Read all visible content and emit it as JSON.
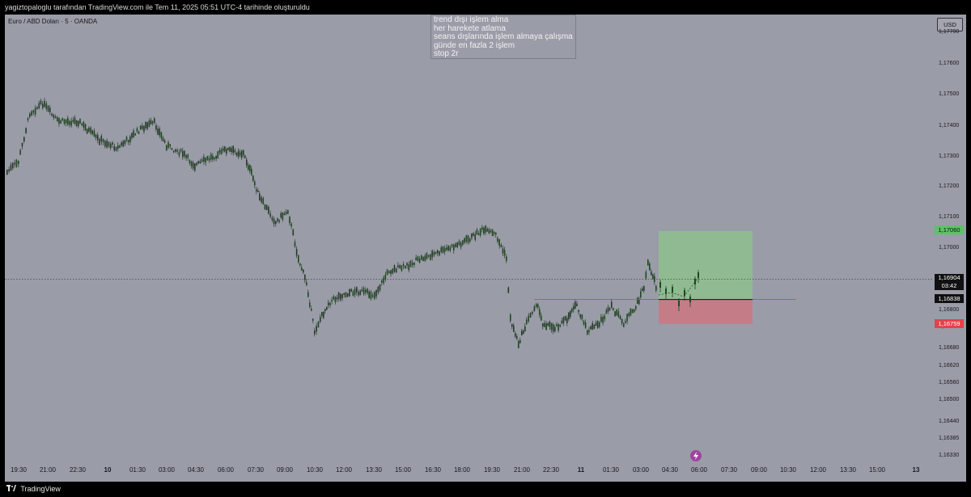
{
  "header": {
    "text": "yagiztopaloglu tarafından TradingView.com ile Tem 11, 2025 05:51 UTC-4 tarihinde oluşturuldu"
  },
  "symbol": {
    "label": "Euro / ABD Doları · 5 · OANDA"
  },
  "note": {
    "lines": [
      "trend dışı işlem alma",
      "her harekete atlama",
      "seans dışlarında işlem almaya çalışma",
      "günde en fazla 2 işlem",
      "stop 2r"
    ]
  },
  "currency": "USD",
  "price_axis": {
    "labels": [
      "1,17700",
      "1,17600",
      "1,17500",
      "1,17400",
      "1,17300",
      "1,17200",
      "1,17100",
      "1,17000",
      "1,16800",
      "1,16740",
      "1,16680",
      "1,16620",
      "1,16560",
      "1,16500",
      "1,16440",
      "1,16385",
      "1,16330"
    ]
  },
  "badges": {
    "target": "1,17060",
    "current": "1,16904",
    "countdown": "03:42",
    "entry": "1,16838",
    "stop": "1,16759"
  },
  "time_axis": {
    "labels": [
      "19:30",
      "21:00",
      "22:30",
      "10",
      "01:30",
      "03:00",
      "04:30",
      "06:00",
      "07:30",
      "09:00",
      "10:30",
      "12:00",
      "13:30",
      "15:00",
      "16:30",
      "18:00",
      "19:30",
      "21:00",
      "22:30",
      "11",
      "01:30",
      "03:00",
      "04:30",
      "06:00",
      "07:30",
      "09:00",
      "10:30",
      "12:00",
      "13:30",
      "15:00",
      "13"
    ]
  },
  "footer": {
    "brand": "TradingView"
  },
  "colors": {
    "background": "#9a9ca8",
    "candle": "#1c4a1c",
    "profit_zone": "#8fbf8f",
    "loss_zone": "#c97a82",
    "target_badge": "#5cc266",
    "stop_badge": "#e8404a"
  },
  "chart_data": {
    "type": "line",
    "title": "Euro / ABD Doları · 5 · OANDA",
    "ylim": [
      1.1633,
      1.1771
    ],
    "x": [
      "19:30",
      "21:00",
      "22:30",
      "10",
      "01:30",
      "03:00",
      "04:30",
      "06:00",
      "07:30",
      "09:00",
      "10:30",
      "12:00",
      "13:30",
      "15:00",
      "16:30",
      "18:00",
      "19:30",
      "21:00",
      "22:30",
      "11",
      "01:30",
      "03:00",
      "04:30",
      "06:00"
    ],
    "series": [
      {
        "values": [
          1.1726,
          1.1747,
          1.1741,
          1.1734,
          1.1733,
          1.174,
          1.173,
          1.1731,
          1.173,
          1.1705,
          1.168,
          1.1685,
          1.1686,
          1.1695,
          1.17,
          1.1702,
          1.1705,
          1.1688,
          1.1682,
          1.1679,
          1.168,
          1.169,
          1.1688,
          1.1691
        ]
      }
    ],
    "position": {
      "target": 1.1706,
      "entry": 1.16838,
      "stop": 1.16759,
      "current": 1.16904
    }
  }
}
